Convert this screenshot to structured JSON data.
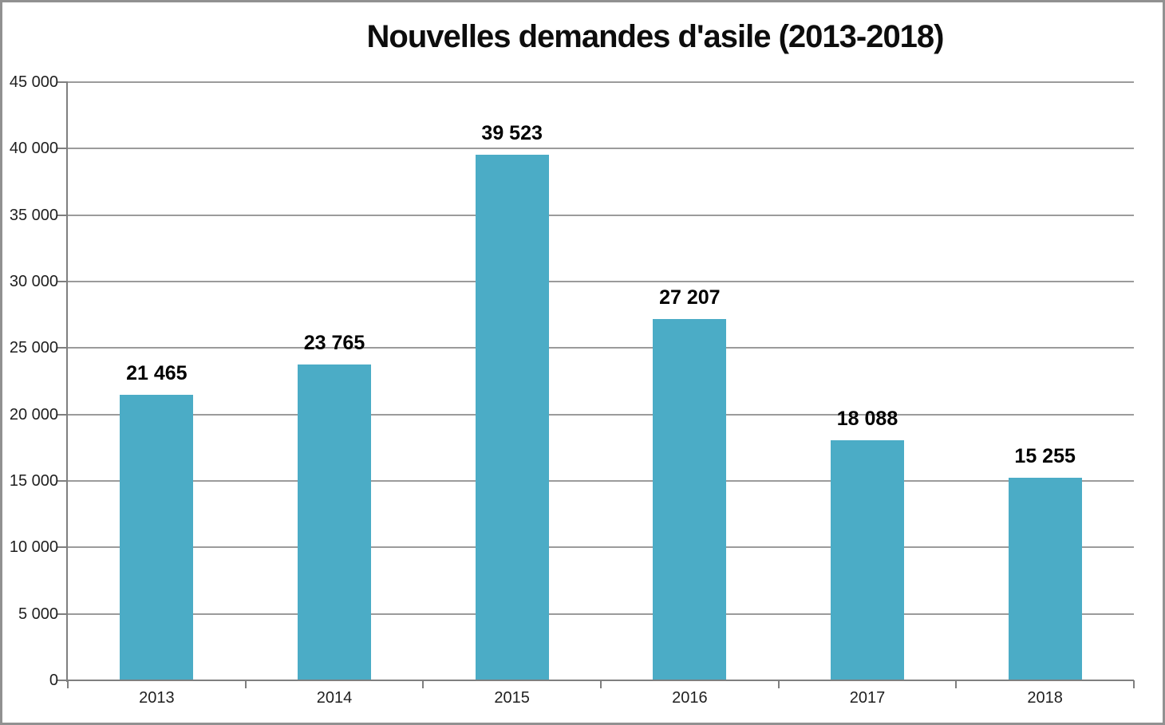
{
  "chart_data": {
    "type": "bar",
    "title": "Nouvelles demandes d'asile (2013-2018)",
    "categories": [
      "2013",
      "2014",
      "2015",
      "2016",
      "2017",
      "2018"
    ],
    "values": [
      21465,
      23765,
      39523,
      27207,
      18088,
      15255
    ],
    "value_labels": [
      "21 465",
      "23 765",
      "39 523",
      "27 207",
      "18 088",
      "15 255"
    ],
    "ylim": [
      0,
      45000
    ],
    "ytick_step": 5000,
    "ytick_labels": [
      "0",
      "5 000",
      "10 000",
      "15 000",
      "20 000",
      "25 000",
      "30 000",
      "35 000",
      "40 000",
      "45 000"
    ],
    "xlabel": "",
    "ylabel": "",
    "grid": "horizontal",
    "legend": "none",
    "colors": {
      "bar": "#4BACC6",
      "gridline": "#9b9b9b",
      "axis": "#7f7f7f",
      "tick_label": "#1f1f1f",
      "value_label": "#000000",
      "title": "#0d0d0d",
      "background": "#FFFFFF",
      "outer_border": "#919191"
    }
  }
}
